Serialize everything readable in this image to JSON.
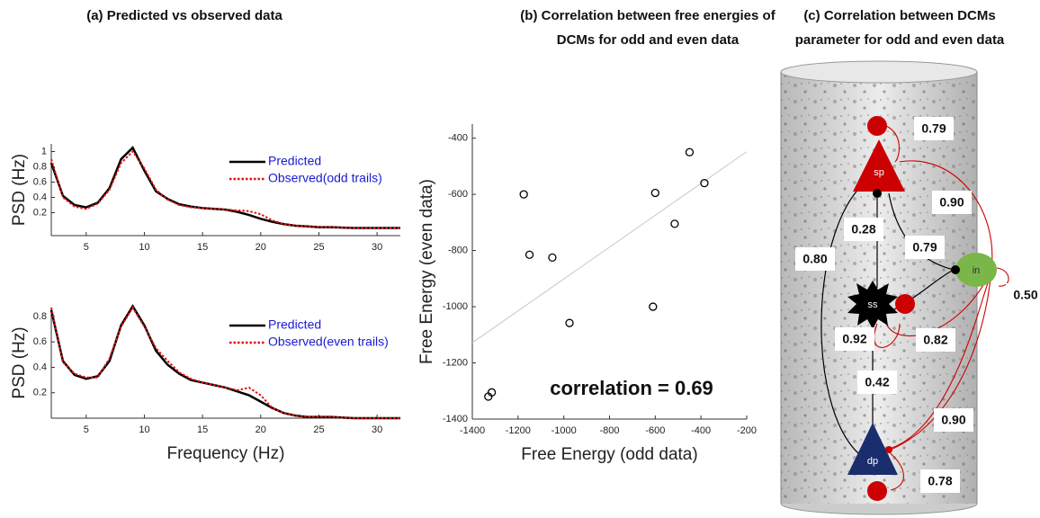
{
  "chart_data": [
    {
      "type": "line",
      "title": "(a)  Predicted vs observed data",
      "ylabel": "PSD (Hz)",
      "x": [
        2,
        3,
        4,
        5,
        6,
        7,
        8,
        9,
        10,
        11,
        12,
        13,
        14,
        15,
        16,
        17,
        18,
        19,
        20,
        21,
        22,
        23,
        24,
        25,
        26,
        28,
        30,
        32
      ],
      "series": [
        {
          "name": "Predicted",
          "color": "#000000",
          "linestyle": "solid",
          "values": [
            0.85,
            0.42,
            0.3,
            0.27,
            0.33,
            0.52,
            0.9,
            1.05,
            0.75,
            0.48,
            0.38,
            0.31,
            0.28,
            0.26,
            0.25,
            0.24,
            0.21,
            0.17,
            0.12,
            0.08,
            0.05,
            0.03,
            0.02,
            0.01,
            0.01,
            0,
            0,
            0
          ]
        },
        {
          "name": "Observed(odd trails)",
          "color": "#e01010",
          "linestyle": "dotted",
          "values": [
            0.9,
            0.4,
            0.28,
            0.25,
            0.32,
            0.5,
            0.85,
            1.0,
            0.78,
            0.5,
            0.37,
            0.3,
            0.27,
            0.26,
            0.25,
            0.24,
            0.23,
            0.22,
            0.18,
            0.1,
            0.05,
            0.03,
            0.02,
            0.01,
            0.01,
            0,
            0,
            0
          ]
        }
      ],
      "xlim": [
        2,
        32
      ],
      "ylim": [
        -0.1,
        1.1
      ],
      "xticks": [
        5,
        10,
        15,
        20,
        25,
        30
      ],
      "yticks": [
        0.2,
        0.4,
        0.6,
        0.8,
        1
      ],
      "legend": "upper right"
    },
    {
      "type": "line",
      "xlabel": "Frequency (Hz)",
      "ylabel": "PSD (Hz)",
      "x": [
        2,
        3,
        4,
        5,
        6,
        7,
        8,
        9,
        10,
        11,
        12,
        13,
        14,
        15,
        16,
        17,
        18,
        19,
        20,
        21,
        22,
        23,
        24,
        25,
        26,
        28,
        30,
        32
      ],
      "series": [
        {
          "name": "Predicted",
          "color": "#000000",
          "linestyle": "solid",
          "values": [
            0.85,
            0.45,
            0.34,
            0.31,
            0.33,
            0.45,
            0.73,
            0.88,
            0.73,
            0.53,
            0.42,
            0.35,
            0.3,
            0.28,
            0.26,
            0.24,
            0.21,
            0.18,
            0.13,
            0.08,
            0.04,
            0.02,
            0.01,
            0.01,
            0.01,
            0,
            0,
            0
          ]
        },
        {
          "name": "Observed(even trails)",
          "color": "#e01010",
          "linestyle": "dotted",
          "values": [
            0.87,
            0.44,
            0.35,
            0.32,
            0.32,
            0.47,
            0.72,
            0.87,
            0.72,
            0.55,
            0.45,
            0.36,
            0.31,
            0.28,
            0.26,
            0.24,
            0.22,
            0.24,
            0.18,
            0.08,
            0.04,
            0.02,
            0.01,
            0.01,
            0.01,
            0,
            0,
            0
          ]
        }
      ],
      "xlim": [
        2,
        32
      ],
      "ylim": [
        0,
        0.87
      ],
      "xticks": [
        5,
        10,
        15,
        20,
        25,
        30
      ],
      "yticks": [
        0.2,
        0.4,
        0.6,
        0.8
      ],
      "legend": "upper right"
    },
    {
      "type": "scatter",
      "title": [
        "(b) Correlation between free energies of",
        "DCMs for odd and even data"
      ],
      "xlabel": "Free Energy (odd data)",
      "ylabel": "Free Energy (even data)",
      "x": [
        -1175,
        -1150,
        -1050,
        -975,
        -1330,
        -1315,
        -610,
        -600,
        -515,
        -450,
        -385
      ],
      "values": [
        -600,
        -815,
        -825,
        -1058,
        -1320,
        -1305,
        -1000,
        -595,
        -705,
        -450,
        -560
      ],
      "color": "#000000",
      "trend_line": {
        "x": [
          -1400,
          -200
        ],
        "y": [
          -1128,
          -448
        ],
        "color": "#c8c8c8"
      },
      "annotation": "correlation = 0.69",
      "xlim": [
        -1400,
        -200
      ],
      "ylim": [
        -1400,
        -350
      ],
      "xticks": [
        -1400,
        -1200,
        -1000,
        -800,
        -600,
        -400,
        -200
      ],
      "yticks": [
        -1400,
        -1200,
        -1000,
        -800,
        -600,
        -400
      ]
    }
  ],
  "diagram": {
    "title": [
      "(c) Correlation between DCMs",
      "parameter for odd and even data"
    ],
    "nodes": [
      {
        "label": "sp"
      },
      {
        "label": "ss"
      },
      {
        "label": "in"
      },
      {
        "label": "dp"
      }
    ],
    "edges": [
      {
        "label": "0.79"
      },
      {
        "label": "0.90"
      },
      {
        "label": "0.28"
      },
      {
        "label": "0.79"
      },
      {
        "label": "0.80"
      },
      {
        "label": "0.50"
      },
      {
        "label": "0.92"
      },
      {
        "label": "0.82"
      },
      {
        "label": "0.42"
      },
      {
        "label": "0.90"
      },
      {
        "label": "0.78"
      }
    ]
  }
}
